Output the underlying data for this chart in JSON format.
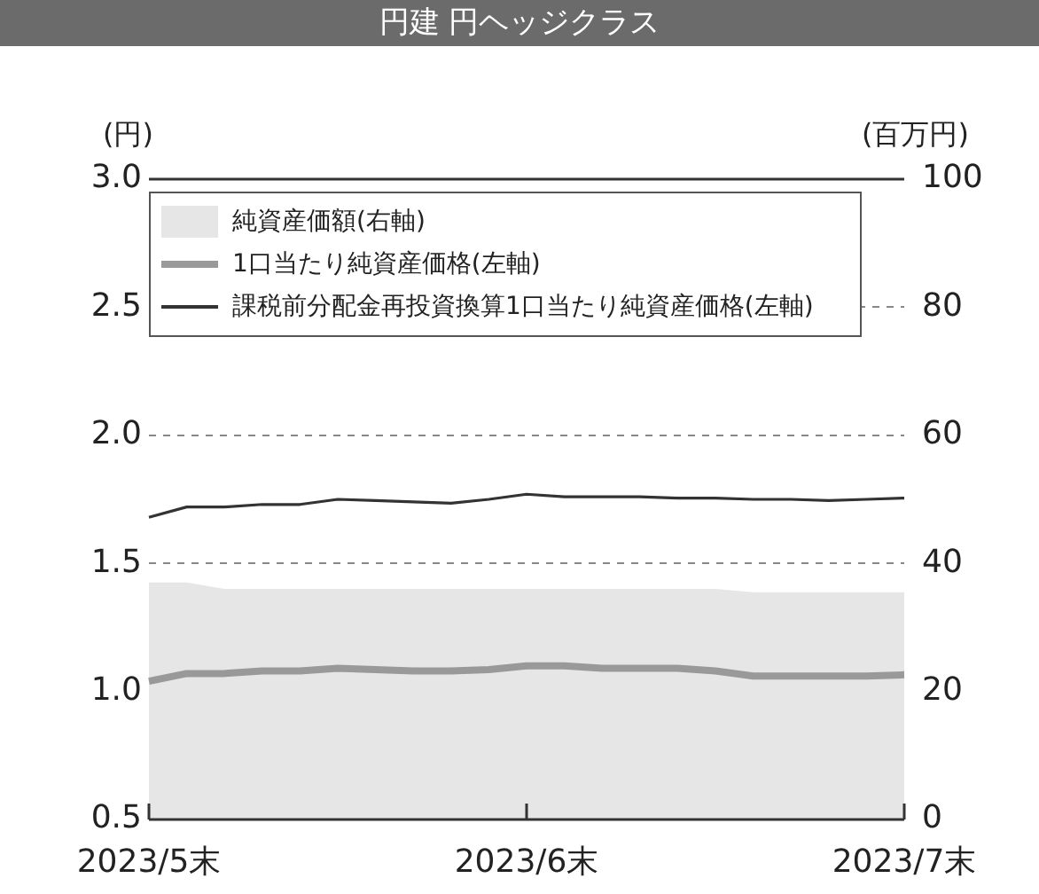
{
  "chart_data": {
    "type": "line",
    "title": "円建 円ヘッジクラス",
    "ylabel": "(円)",
    "y2label": "(百万円)",
    "categories": [
      "2023/5末",
      null,
      null,
      null,
      null,
      null,
      null,
      null,
      null,
      null,
      "2023/6末",
      null,
      null,
      null,
      null,
      null,
      null,
      null,
      null,
      null,
      "2023/7末"
    ],
    "series": [
      {
        "name": "純資産価額(右軸)",
        "type": "area",
        "axis": "y2",
        "color": "#e6e6e6",
        "values": [
          37,
          37,
          36,
          36,
          36,
          36,
          36,
          36,
          36,
          36,
          36,
          36,
          36,
          36,
          36,
          36,
          35.5,
          35.5,
          35.5,
          35.5,
          35.5
        ]
      },
      {
        "name": "1口当たり純資産価格(左軸)",
        "color": "#999999",
        "values": [
          1.04,
          1.07,
          1.07,
          1.08,
          1.08,
          1.09,
          1.085,
          1.08,
          1.08,
          1.085,
          1.1,
          1.1,
          1.09,
          1.09,
          1.09,
          1.08,
          1.06,
          1.06,
          1.06,
          1.06,
          1.065
        ]
      },
      {
        "name": "課税前分配金再投資換算1口当たり純資産価格(左軸)",
        "color": "#333333",
        "values": [
          1.68,
          1.72,
          1.72,
          1.73,
          1.73,
          1.75,
          1.745,
          1.74,
          1.735,
          1.75,
          1.77,
          1.76,
          1.76,
          1.76,
          1.755,
          1.755,
          1.75,
          1.75,
          1.745,
          1.75,
          1.755
        ]
      }
    ],
    "ylim": [
      0.5,
      3.0
    ],
    "yticks": [
      0.5,
      {
        "value": 1,
        "label": "1.0"
      },
      1.5,
      {
        "value": 2,
        "label": "2.0"
      },
      2.5,
      {
        "value": 3,
        "label": "3.0"
      }
    ],
    "y2lim": [
      0,
      100
    ],
    "y2ticks": [
      0,
      20,
      40,
      60,
      80,
      100
    ],
    "grid": "y",
    "legend": "top left",
    "marker": "none",
    "line_style": "solid"
  }
}
